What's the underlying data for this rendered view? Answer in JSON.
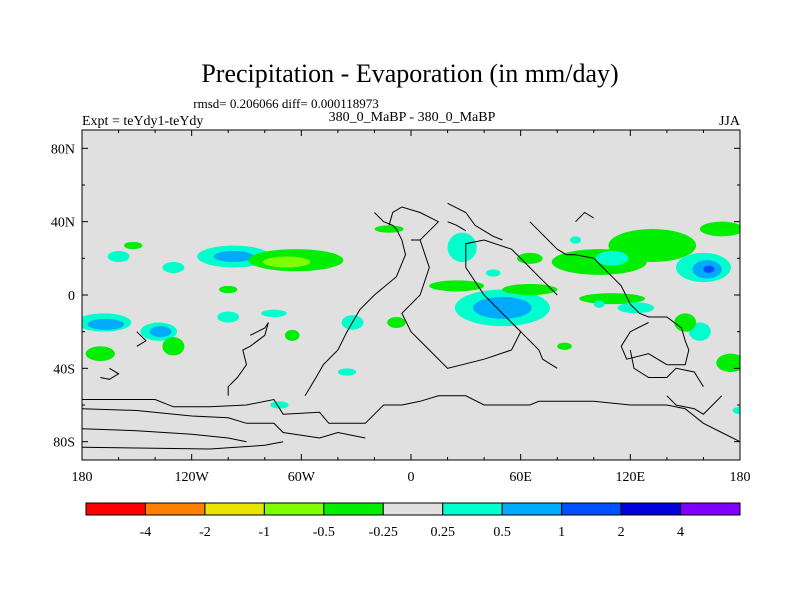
{
  "chart_data": {
    "type": "heatmap",
    "title": "Precipitation - Evaporation (in mm/day)",
    "stats_line": "rmsd= 0.206066 diff= 0.000118973",
    "left_label": "Expt = teYdy1-teYdy",
    "center_label": "380_0_MaBP - 380_0_MaBP",
    "right_label": "JJA",
    "x_axis": {
      "range": [
        -180,
        180
      ],
      "ticks": [
        -180,
        -120,
        -60,
        0,
        60,
        120,
        180
      ],
      "tick_labels": [
        "180",
        "120W",
        "60W",
        "0",
        "60E",
        "120E",
        "180"
      ]
    },
    "y_axis": {
      "range": [
        -90,
        90
      ],
      "ticks": [
        80,
        40,
        0,
        -40,
        -80
      ],
      "tick_labels": [
        "80N",
        "40N",
        "0",
        "40S",
        "80S"
      ]
    },
    "colorbar": {
      "colors": [
        "#ff0000",
        "#ff8000",
        "#e6e600",
        "#80ff00",
        "#00ee00",
        "#e0e0e0",
        "#00ffcc",
        "#00aaff",
        "#0050ff",
        "#0000dd",
        "#8000ff"
      ],
      "boundaries": [
        "-4",
        "-2",
        "-1",
        "-0.5",
        "-0.25",
        "0.25",
        "0.5",
        "1",
        "2",
        "4"
      ]
    },
    "anomaly_regions": [
      {
        "lon": -160,
        "lat": 21,
        "rlon": 6,
        "rlat": 3,
        "level": 6
      },
      {
        "lon": -152,
        "lat": 27,
        "rlon": 5,
        "rlat": 2,
        "level": 4
      },
      {
        "lon": -130,
        "lat": 15,
        "rlon": 6,
        "rlat": 3,
        "level": 6
      },
      {
        "lon": -97,
        "lat": 21,
        "rlon": 20,
        "rlat": 6,
        "level": 6
      },
      {
        "lon": -97,
        "lat": 21,
        "rlon": 11,
        "rlat": 3,
        "level": 7
      },
      {
        "lon": -63,
        "lat": 19,
        "rlon": 26,
        "rlat": 6,
        "level": 4
      },
      {
        "lon": -68,
        "lat": 18,
        "rlon": 13,
        "rlat": 3,
        "level": 3
      },
      {
        "lon": -100,
        "lat": 3,
        "rlon": 5,
        "rlat": 2,
        "level": 4
      },
      {
        "lon": -12,
        "lat": 36,
        "rlon": 8,
        "rlat": 2,
        "level": 4
      },
      {
        "lon": -168,
        "lat": -15,
        "rlon": 15,
        "rlat": 5,
        "level": 6
      },
      {
        "lon": -167,
        "lat": -16,
        "rlon": 10,
        "rlat": 3,
        "level": 7
      },
      {
        "lon": -138,
        "lat": -20,
        "rlon": 10,
        "rlat": 5,
        "level": 6
      },
      {
        "lon": -137,
        "lat": -20,
        "rlon": 6,
        "rlat": 3,
        "level": 7
      },
      {
        "lon": -100,
        "lat": -12,
        "rlon": 6,
        "rlat": 3,
        "level": 6
      },
      {
        "lon": -75,
        "lat": -10,
        "rlon": 7,
        "rlat": 2,
        "level": 6
      },
      {
        "lon": -170,
        "lat": -32,
        "rlon": 8,
        "rlat": 4,
        "level": 4
      },
      {
        "lon": -130,
        "lat": -28,
        "rlon": 6,
        "rlat": 5,
        "level": 4
      },
      {
        "lon": -65,
        "lat": -22,
        "rlon": 4,
        "rlat": 3,
        "level": 4
      },
      {
        "lon": -32,
        "lat": -15,
        "rlon": 6,
        "rlat": 4,
        "level": 6
      },
      {
        "lon": -35,
        "lat": -42,
        "rlon": 5,
        "rlat": 2,
        "level": 6
      },
      {
        "lon": -72,
        "lat": -60,
        "rlon": 5,
        "rlat": 2,
        "level": 6
      },
      {
        "lon": -8,
        "lat": -15,
        "rlon": 5,
        "rlat": 3,
        "level": 4
      },
      {
        "lon": 28,
        "lat": 26,
        "rlon": 8,
        "rlat": 8,
        "level": 6
      },
      {
        "lon": 25,
        "lat": 5,
        "rlon": 15,
        "rlat": 3,
        "level": 4
      },
      {
        "lon": 50,
        "lat": -7,
        "rlon": 26,
        "rlat": 10,
        "level": 6
      },
      {
        "lon": 50,
        "lat": -7,
        "rlon": 16,
        "rlat": 6,
        "level": 7
      },
      {
        "lon": 65,
        "lat": 3,
        "rlon": 15,
        "rlat": 3,
        "level": 4
      },
      {
        "lon": 45,
        "lat": 12,
        "rlon": 4,
        "rlat": 2,
        "level": 6
      },
      {
        "lon": 65,
        "lat": 20,
        "rlon": 7,
        "rlat": 3,
        "level": 4
      },
      {
        "lon": 90,
        "lat": 30,
        "rlon": 3,
        "rlat": 2,
        "level": 6
      },
      {
        "lon": 103,
        "lat": 18,
        "rlon": 26,
        "rlat": 7,
        "level": 4
      },
      {
        "lon": 132,
        "lat": 27,
        "rlon": 24,
        "rlat": 9,
        "level": 4
      },
      {
        "lon": 110,
        "lat": 20,
        "rlon": 9,
        "rlat": 4,
        "level": 6
      },
      {
        "lon": 160,
        "lat": 15,
        "rlon": 15,
        "rlat": 8,
        "level": 6
      },
      {
        "lon": 162,
        "lat": 14,
        "rlon": 8,
        "rlat": 5,
        "level": 7
      },
      {
        "lon": 163,
        "lat": 14,
        "rlon": 3,
        "rlat": 2,
        "level": 8
      },
      {
        "lon": 170,
        "lat": 36,
        "rlon": 12,
        "rlat": 4,
        "level": 4
      },
      {
        "lon": 110,
        "lat": -2,
        "rlon": 18,
        "rlat": 3,
        "level": 4
      },
      {
        "lon": 123,
        "lat": -7,
        "rlon": 10,
        "rlat": 3,
        "level": 6
      },
      {
        "lon": 158,
        "lat": -20,
        "rlon": 6,
        "rlat": 5,
        "level": 6
      },
      {
        "lon": 150,
        "lat": -15,
        "rlon": 6,
        "rlat": 5,
        "level": 4
      },
      {
        "lon": 175,
        "lat": -37,
        "rlon": 8,
        "rlat": 5,
        "level": 4
      },
      {
        "lon": 180,
        "lat": -63,
        "rlon": 4,
        "rlat": 2,
        "level": 6
      },
      {
        "lon": 84,
        "lat": -28,
        "rlon": 4,
        "rlat": 2,
        "level": 4
      },
      {
        "lon": 103,
        "lat": -5,
        "rlon": 3,
        "rlat": 2,
        "level": 6
      }
    ],
    "coastlines": [
      [
        [
          -180,
          -57
        ],
        [
          -140,
          -57
        ],
        [
          -130,
          -61
        ],
        [
          -110,
          -61
        ],
        [
          -90,
          -60
        ],
        [
          -75,
          -57
        ],
        [
          -70,
          -65
        ],
        [
          -50,
          -64
        ],
        [
          -45,
          -70
        ],
        [
          -25,
          -70
        ],
        [
          -15,
          -60
        ],
        [
          -5,
          -60
        ],
        [
          5,
          -58
        ],
        [
          15,
          -55
        ],
        [
          30,
          -55
        ],
        [
          40,
          -60
        ],
        [
          55,
          -60
        ],
        [
          65,
          -60
        ],
        [
          70,
          -58
        ],
        [
          100,
          -58
        ],
        [
          120,
          -60
        ],
        [
          140,
          -60
        ],
        [
          150,
          -62
        ],
        [
          160,
          -70
        ],
        [
          170,
          -75
        ],
        [
          180,
          -80
        ]
      ],
      [
        [
          -180,
          -62
        ],
        [
          -150,
          -63
        ],
        [
          -120,
          -66
        ],
        [
          -100,
          -67
        ],
        [
          -90,
          -70
        ],
        [
          -75,
          -70
        ],
        [
          -70,
          -75
        ],
        [
          -50,
          -78
        ],
        [
          -40,
          -75
        ],
        [
          -25,
          -78
        ]
      ],
      [
        [
          -180,
          -73
        ],
        [
          -150,
          -74
        ],
        [
          -120,
          -76
        ],
        [
          -100,
          -78
        ],
        [
          -90,
          -80
        ]
      ],
      [
        [
          -180,
          -83
        ],
        [
          -110,
          -84
        ],
        [
          -80,
          -82
        ],
        [
          -70,
          -80
        ]
      ],
      [
        [
          -20,
          45
        ],
        [
          -15,
          40
        ],
        [
          -10,
          38
        ],
        [
          -8,
          36
        ],
        [
          -5,
          30
        ],
        [
          -3,
          22
        ],
        [
          -8,
          10
        ],
        [
          -20,
          0
        ],
        [
          -28,
          -8
        ],
        [
          -35,
          -20
        ],
        [
          -40,
          -30
        ],
        [
          -48,
          -38
        ],
        [
          -52,
          -45
        ],
        [
          -55,
          -50
        ],
        [
          -58,
          -55
        ]
      ],
      [
        [
          -88,
          -22
        ],
        [
          -80,
          -18
        ],
        [
          -78,
          -15
        ],
        [
          -80,
          -22
        ],
        [
          -88,
          -28
        ],
        [
          -92,
          -30
        ],
        [
          -90,
          -38
        ],
        [
          -95,
          -45
        ],
        [
          -100,
          -50
        ],
        [
          -100,
          -55
        ]
      ],
      [
        [
          0,
          30
        ],
        [
          5,
          30
        ],
        [
          10,
          35
        ],
        [
          15,
          40
        ],
        [
          5,
          45
        ],
        [
          -5,
          48
        ],
        [
          -10,
          45
        ],
        [
          -12,
          38
        ]
      ],
      [
        [
          5,
          30
        ],
        [
          10,
          15
        ],
        [
          5,
          0
        ],
        [
          -5,
          -10
        ],
        [
          0,
          -20
        ],
        [
          10,
          -30
        ],
        [
          20,
          -40
        ],
        [
          40,
          -35
        ],
        [
          55,
          -30
        ],
        [
          60,
          -20
        ],
        [
          48,
          -8
        ],
        [
          40,
          0
        ],
        [
          30,
          15
        ],
        [
          30,
          28
        ],
        [
          40,
          30
        ],
        [
          55,
          25
        ],
        [
          60,
          20
        ],
        [
          65,
          15
        ],
        [
          70,
          10
        ],
        [
          75,
          5
        ],
        [
          80,
          0
        ]
      ],
      [
        [
          20,
          50
        ],
        [
          30,
          45
        ],
        [
          35,
          38
        ],
        [
          40,
          35
        ],
        [
          45,
          32
        ],
        [
          50,
          30
        ]
      ],
      [
        [
          20,
          40
        ],
        [
          25,
          38
        ],
        [
          30,
          35
        ]
      ],
      [
        [
          65,
          40
        ],
        [
          70,
          35
        ],
        [
          75,
          30
        ],
        [
          80,
          25
        ],
        [
          85,
          22
        ],
        [
          90,
          22
        ],
        [
          100,
          20
        ],
        [
          105,
          15
        ],
        [
          110,
          10
        ],
        [
          115,
          5
        ],
        [
          120,
          -5
        ],
        [
          125,
          -10
        ],
        [
          130,
          -12
        ],
        [
          140,
          -12
        ],
        [
          148,
          -18
        ],
        [
          150,
          -25
        ],
        [
          152,
          -30
        ],
        [
          150,
          -38
        ],
        [
          140,
          -38
        ],
        [
          130,
          -32
        ],
        [
          118,
          -35
        ],
        [
          115,
          -28
        ],
        [
          120,
          -20
        ],
        [
          130,
          -15
        ]
      ],
      [
        [
          55,
          -15
        ],
        [
          60,
          -20
        ],
        [
          65,
          -25
        ],
        [
          70,
          -30
        ],
        [
          72,
          -35
        ],
        [
          80,
          -40
        ]
      ],
      [
        [
          -165,
          -40
        ],
        [
          -160,
          -43
        ],
        [
          -165,
          -46
        ],
        [
          -170,
          -45
        ]
      ],
      [
        [
          -150,
          -20
        ],
        [
          -145,
          -25
        ],
        [
          -150,
          -28
        ]
      ],
      [
        [
          120,
          -30
        ],
        [
          122,
          -40
        ],
        [
          130,
          -45
        ],
        [
          140,
          -45
        ],
        [
          145,
          -40
        ],
        [
          155,
          -42
        ],
        [
          160,
          -50
        ]
      ],
      [
        [
          140,
          -55
        ],
        [
          145,
          -60
        ],
        [
          155,
          -62
        ],
        [
          160,
          -65
        ],
        [
          165,
          -60
        ],
        [
          170,
          -55
        ]
      ],
      [
        [
          90,
          40
        ],
        [
          95,
          45
        ],
        [
          100,
          42
        ]
      ]
    ]
  }
}
